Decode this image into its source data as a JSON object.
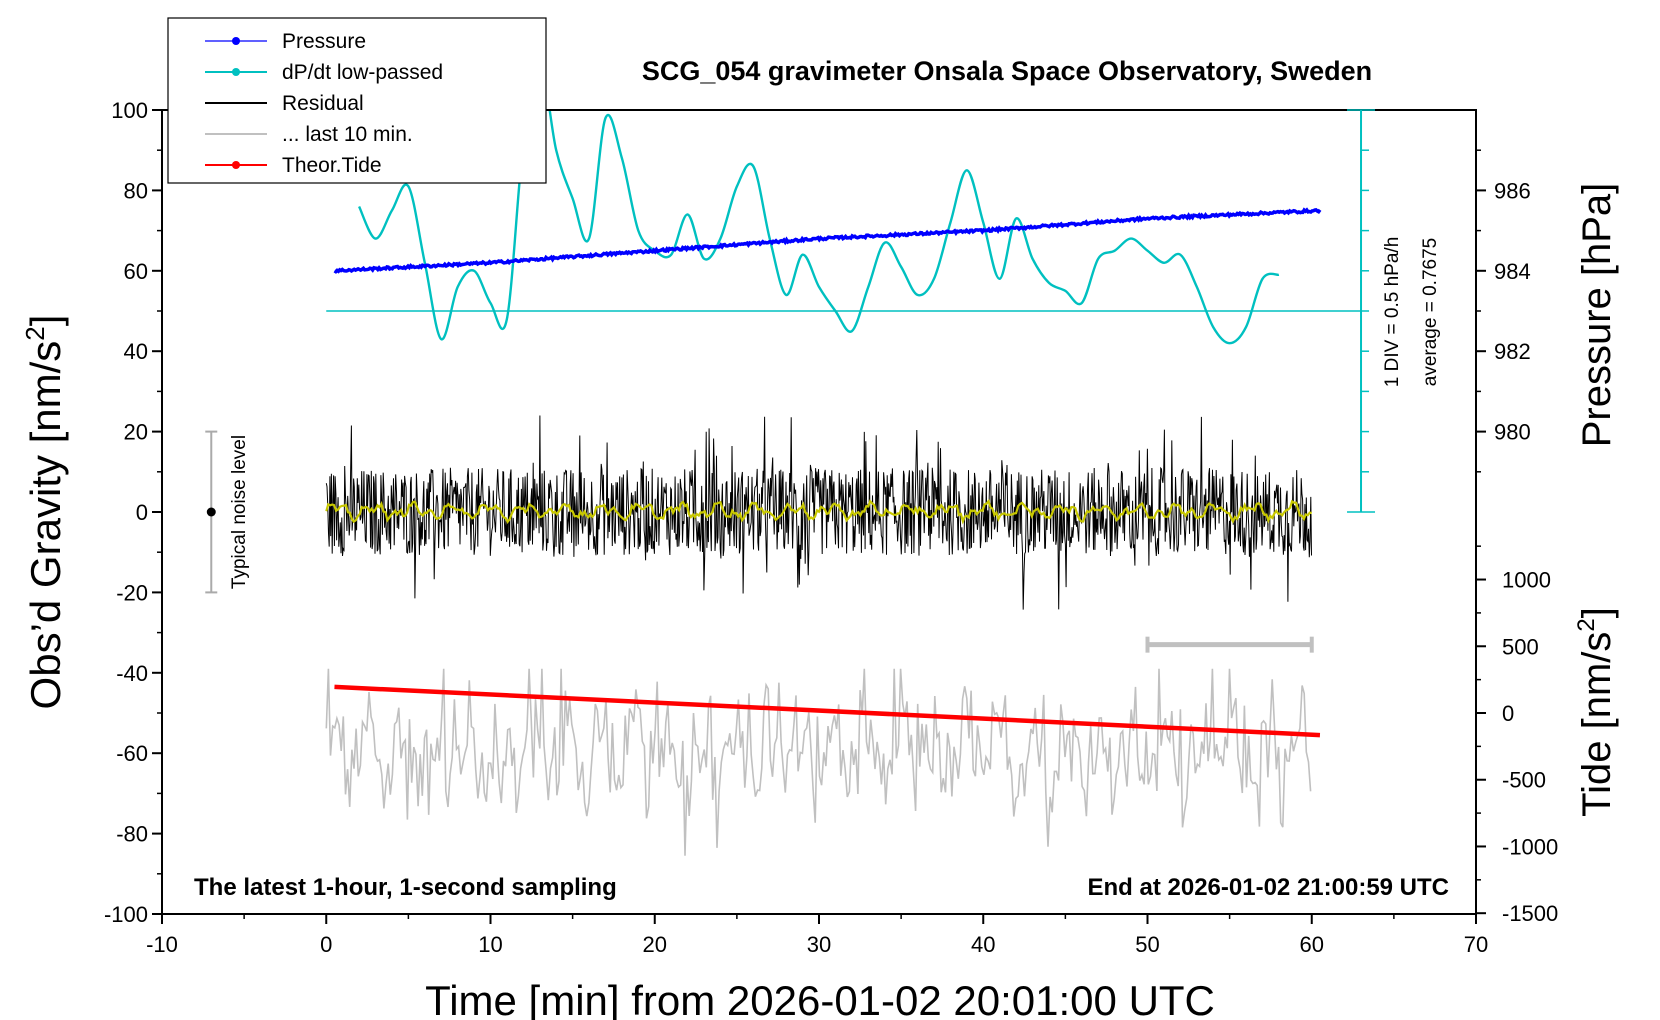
{
  "chart_data": {
    "type": "line",
    "title": "SCG_054 gravimeter Onsala Space Observatory, Sweden",
    "xlabel": "Time [min] from 2026-01-02 20:01:00 UTC",
    "ylabel_left": "Obs'd Gravity [nm/s²]",
    "ylabel_right_top": "Pressure [hPa]",
    "ylabel_right_bottom": "Tide [nm/s²]",
    "xlim": [
      -10,
      70
    ],
    "ylim_left": [
      -100,
      100
    ],
    "ylim_pressure": [
      978,
      988
    ],
    "ylim_tide": [
      -1500,
      1500
    ],
    "x_ticks": [
      "-10",
      "0",
      "10",
      "20",
      "30",
      "40",
      "50",
      "60",
      "70"
    ],
    "y_ticks_left": [
      "-100",
      "-80",
      "-60",
      "-40",
      "-20",
      "0",
      "20",
      "40",
      "60",
      "80",
      "100"
    ],
    "y_ticks_pressure": [
      "980",
      "982",
      "984",
      "986"
    ],
    "y_ticks_tide": [
      "-1500",
      "-1000",
      "-500",
      "0",
      "500",
      "1000"
    ],
    "footer_left": "The latest 1-hour, 1-second sampling",
    "footer_right": "End at 2026-01-02 21:00:59 UTC",
    "noise_label": "Typical noise level",
    "dpdt_scale_label": "1 DIV = 0.5 hPa/h",
    "dpdt_average_label": "average = 0.7675",
    "legend": [
      {
        "label": "Pressure",
        "color": "#0000ff",
        "marker": true
      },
      {
        "label": "dP/dt low-passed",
        "color": "#00c0c0",
        "marker": true
      },
      {
        "label": "Residual",
        "color": "#000000",
        "marker": false
      },
      {
        "label": "... last 10 min.",
        "color": "#c0c0c0",
        "marker": false
      },
      {
        "label": "Theor.Tide",
        "color": "#ff0000",
        "marker": true
      }
    ],
    "colors": {
      "pressure": "#0000ff",
      "dpdt": "#00c0c0",
      "residual": "#000000",
      "residual_smoothed": "#c8c800",
      "last10": "#c0c0c0",
      "tide": "#ff0000"
    },
    "series": [
      {
        "name": "Pressure",
        "axis": "pressure",
        "x": [
          0.5,
          10,
          20,
          30,
          40,
          50,
          60.5
        ],
        "y": [
          984.0,
          984.2,
          984.5,
          984.8,
          985.0,
          985.3,
          985.5
        ]
      },
      {
        "name": "dP/dt low-passed",
        "axis": "left_y_scaled",
        "x": [
          2,
          3,
          4,
          5,
          6,
          7,
          8,
          9,
          10,
          11,
          12,
          13,
          14,
          15,
          16,
          17,
          18,
          19,
          20,
          21,
          22,
          23,
          24,
          25,
          26,
          27,
          28,
          29,
          30,
          31,
          32,
          33,
          34,
          35,
          36,
          37,
          38,
          39,
          40,
          41,
          42,
          43,
          44,
          45,
          46,
          47,
          48,
          49,
          50,
          51,
          52,
          53,
          54,
          55,
          56,
          57,
          58
        ],
        "y": [
          76,
          68,
          75,
          81,
          62,
          43,
          56,
          60,
          52,
          48,
          92,
          112,
          90,
          78,
          68,
          98,
          88,
          70,
          65,
          64,
          74,
          63,
          68,
          81,
          86,
          68,
          54,
          64,
          56,
          50,
          45,
          56,
          67,
          61,
          54,
          58,
          72,
          85,
          72,
          58,
          73,
          63,
          57,
          55,
          52,
          63,
          65,
          68,
          65,
          62,
          64,
          56,
          46,
          42,
          46,
          58,
          59
        ]
      },
      {
        "name": "dP/dt average line",
        "axis": "left",
        "x": [
          0,
          63
        ],
        "y": [
          50,
          50
        ]
      },
      {
        "name": "Residual",
        "axis": "left",
        "x_range": [
          0,
          60
        ],
        "y_envelope": [
          -25,
          24
        ],
        "y_mean": 0
      },
      {
        "name": "... last 10 min.",
        "axis": "left",
        "x_range": [
          0,
          60
        ],
        "y_envelope": [
          -86,
          -39
        ],
        "y_mean": -60
      },
      {
        "name": "Theor.Tide",
        "axis": "left",
        "x": [
          0.5,
          60.5
        ],
        "y": [
          -43.5,
          -55.5
        ]
      },
      {
        "name": "Typical noise level",
        "axis": "left",
        "x": [
          -7,
          -7
        ],
        "y": [
          -20,
          20
        ],
        "center": 0
      },
      {
        "name": "last 10 min. span",
        "axis": "left",
        "x": [
          50,
          60
        ],
        "y": [
          -33,
          -33
        ]
      }
    ]
  }
}
